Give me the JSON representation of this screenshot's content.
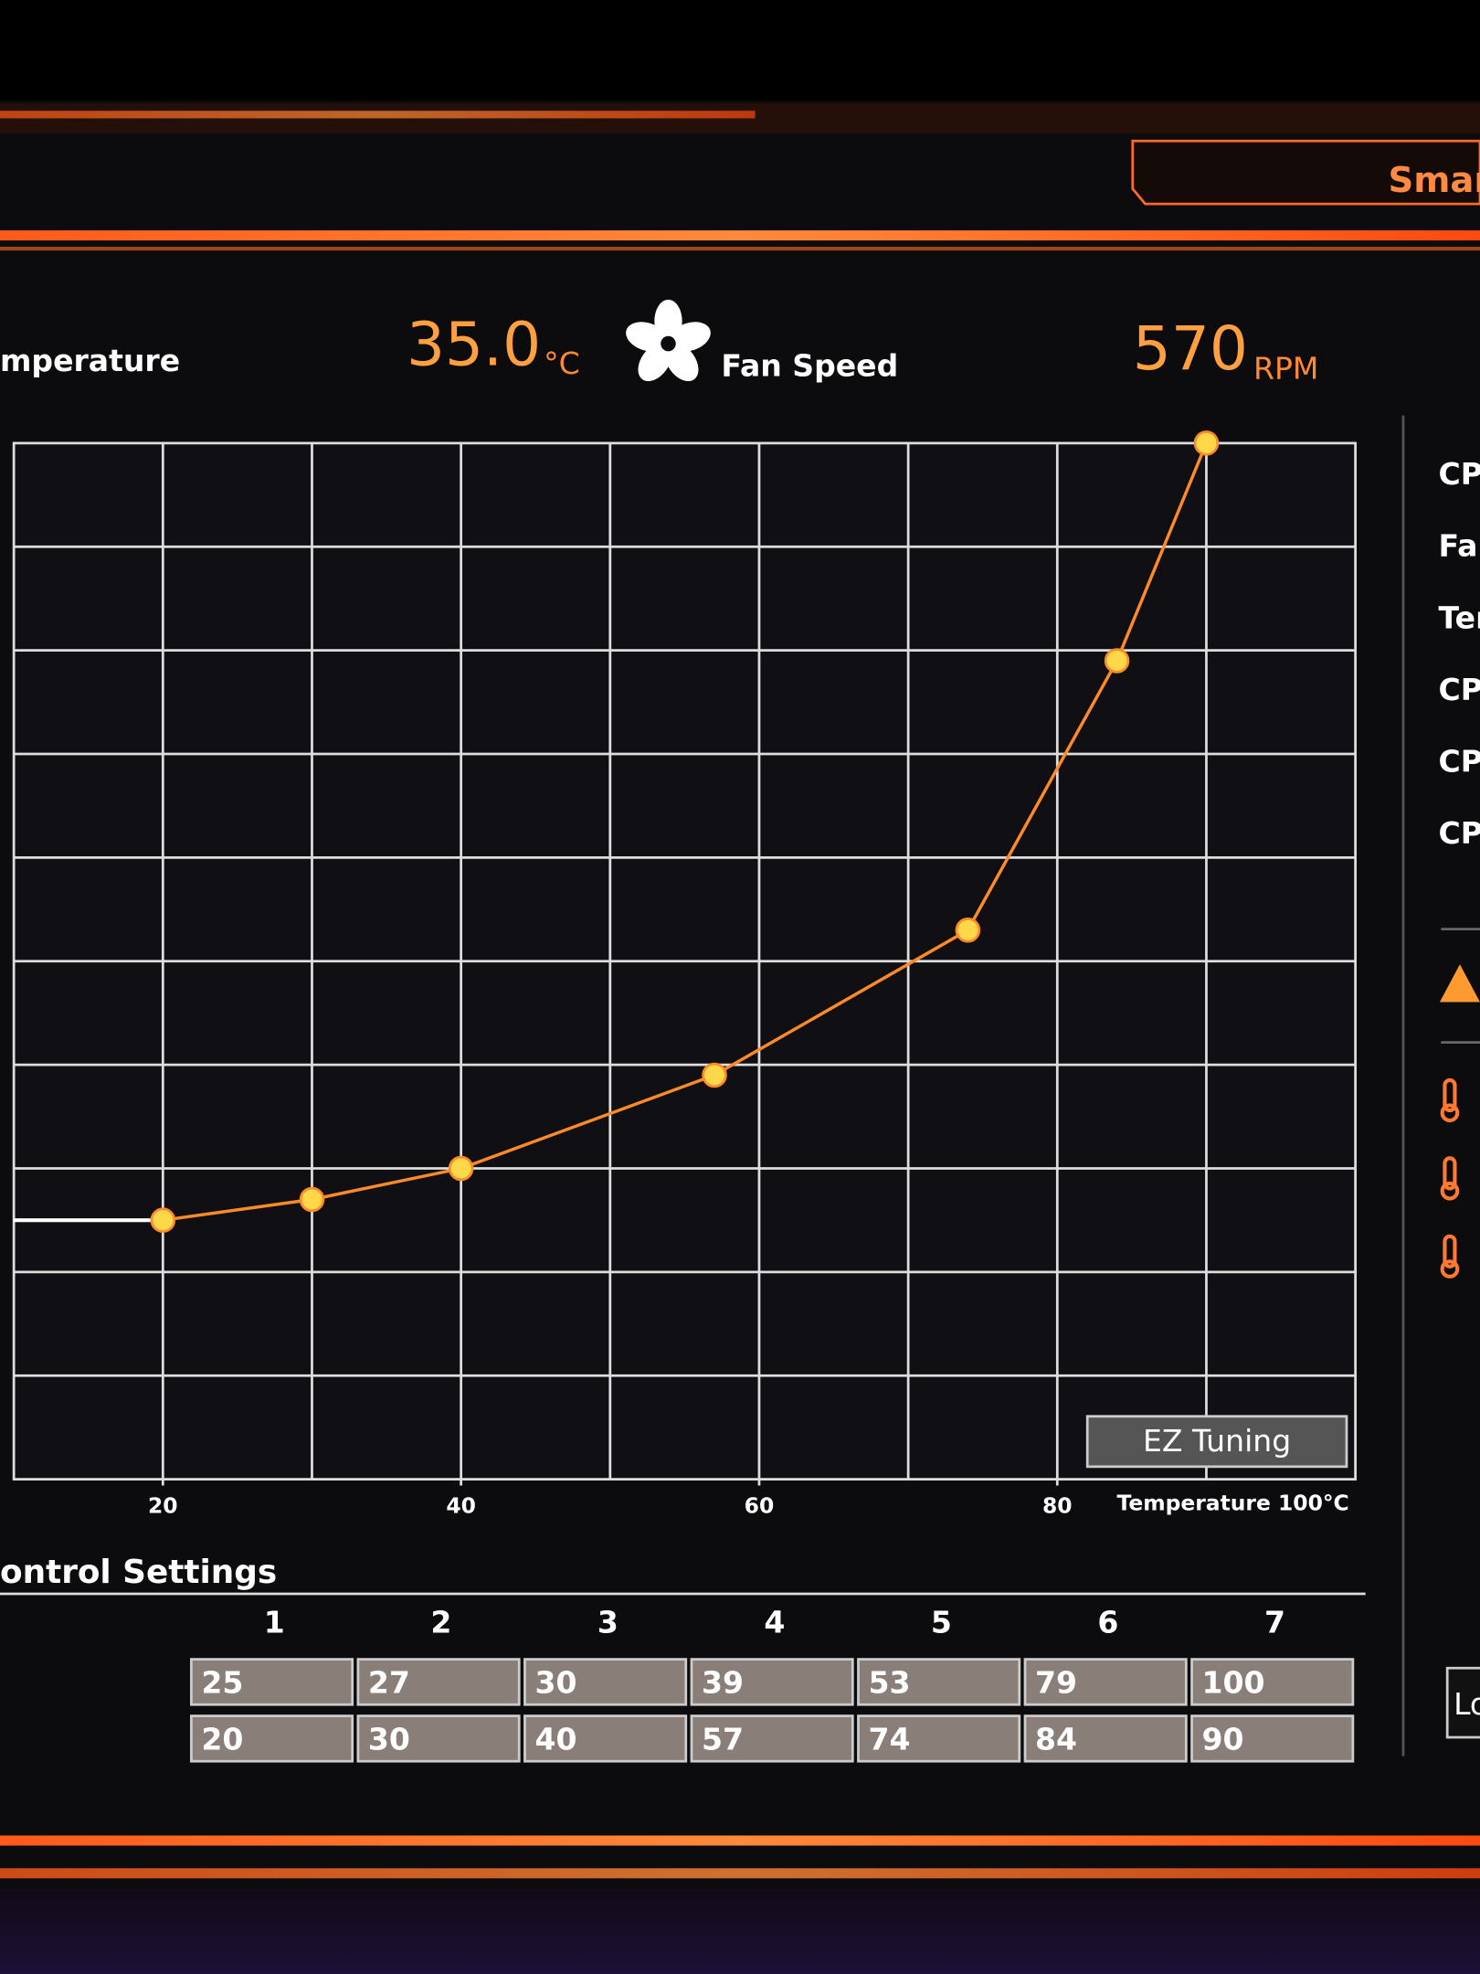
{
  "header": {
    "temp_label": "mperature",
    "temp_value": "35.0",
    "temp_unit": "°C",
    "fan_label": "Fan Speed",
    "fan_value": "570",
    "fan_unit": "RPM",
    "tab": "Smar"
  },
  "chart_data": {
    "type": "line",
    "x": [
      20,
      30,
      40,
      57,
      74,
      84,
      90
    ],
    "series": [
      {
        "values": [
          25,
          27,
          30,
          39,
          53,
          79,
          100
        ],
        "color": "#ff8a2a"
      }
    ],
    "xlim": [
      10,
      100
    ],
    "ylim": [
      0,
      100
    ],
    "xticks": [
      20,
      40,
      60,
      80
    ],
    "x_label": "Temperature 100°C",
    "grid": true
  },
  "settings": {
    "title": "ontrol Settings",
    "columns": [
      "1",
      "2",
      "3",
      "4",
      "5",
      "6",
      "7"
    ]
  },
  "sidebar": [
    "CPU",
    "Far",
    "Ter",
    "CP",
    "CP",
    "CP"
  ],
  "buttons": {
    "ez": "EZ Tuning",
    "load": "Lo"
  }
}
